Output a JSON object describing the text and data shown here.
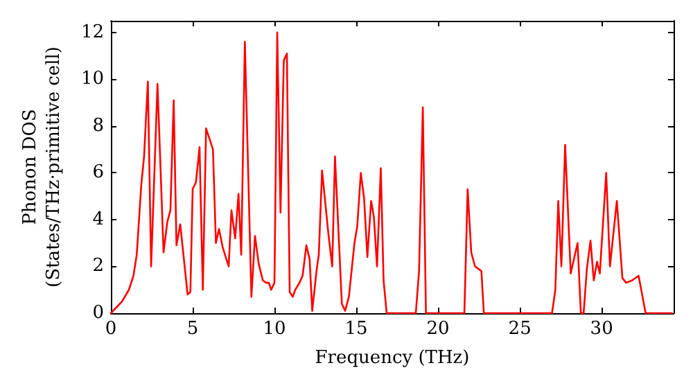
{
  "chart_data": {
    "type": "line",
    "xlabel": "Frequency (THz)",
    "ylabel": "Phonon DOS\n(States/THz·primitive cell)",
    "xlim": [
      0,
      34.4
    ],
    "ylim": [
      0,
      12.5
    ],
    "xticks": [
      0,
      5,
      10,
      15,
      20,
      25,
      30
    ],
    "yticks": [
      0,
      2,
      4,
      6,
      8,
      10,
      12
    ],
    "grid": false,
    "marker": "none",
    "line_style": "solid",
    "series": [
      {
        "color": "#ff0000",
        "x": [
          0,
          0.68,
          1.1,
          1.38,
          1.58,
          1.86,
          2.03,
          2.26,
          2.46,
          2.85,
          3.22,
          3.45,
          3.64,
          3.84,
          4.01,
          4.24,
          4.69,
          4.86,
          5.0,
          5.2,
          5.42,
          5.62,
          5.82,
          6.24,
          6.42,
          6.61,
          6.84,
          7.2,
          7.37,
          7.6,
          7.8,
          7.97,
          8.19,
          8.59,
          8.81,
          9.04,
          9.29,
          9.49,
          9.66,
          9.8,
          10.0,
          10.17,
          10.37,
          10.57,
          10.76,
          10.93,
          11.12,
          11.27,
          11.53,
          11.72,
          11.95,
          12.15,
          12.31,
          12.57,
          12.71,
          12.91,
          13.28,
          13.53,
          13.7,
          14.12,
          14.32,
          14.55,
          14.89,
          15.06,
          15.28,
          15.48,
          15.68,
          15.91,
          16.08,
          16.27,
          16.5,
          16.67,
          16.86,
          18.64,
          18.84,
          19.07,
          19.26,
          21.61,
          21.81,
          22.03,
          22.26,
          22.46,
          22.65,
          22.8,
          26.97,
          27.17,
          27.35,
          27.54,
          27.77,
          28.11,
          28.53,
          28.73,
          28.9,
          29.1,
          29.32,
          29.52,
          29.72,
          29.89,
          30.28,
          30.51,
          30.93,
          31.27,
          31.5,
          31.86,
          32.26,
          32.69,
          34.3
        ],
        "values": [
          0,
          0.5,
          1.0,
          1.6,
          2.5,
          5.5,
          6.7,
          9.9,
          2.0,
          9.8,
          2.6,
          3.9,
          4.4,
          9.1,
          2.9,
          3.8,
          0.8,
          0.9,
          5.3,
          5.6,
          7.1,
          1.0,
          7.9,
          7.0,
          3.0,
          3.6,
          2.8,
          2.0,
          4.4,
          3.2,
          5.1,
          2.5,
          11.6,
          0.7,
          3.3,
          2.1,
          1.4,
          1.3,
          1.3,
          1.0,
          1.3,
          12.0,
          4.3,
          10.8,
          11.1,
          0.9,
          0.7,
          1.0,
          1.3,
          1.6,
          2.9,
          2.3,
          0.1,
          1.8,
          2.5,
          6.1,
          3.5,
          2.0,
          6.7,
          0.4,
          0.1,
          0.7,
          3.0,
          3.7,
          6.0,
          4.9,
          2.4,
          4.8,
          4.1,
          2.0,
          6.2,
          1.4,
          0,
          0,
          1.8,
          8.8,
          0,
          0,
          5.3,
          2.6,
          2.0,
          1.9,
          1.8,
          0,
          0,
          1.0,
          4.8,
          2.0,
          7.2,
          1.7,
          3.0,
          0,
          0,
          1.9,
          3.1,
          1.4,
          2.2,
          1.7,
          6.0,
          2.0,
          4.8,
          1.5,
          1.3,
          1.4,
          1.6,
          0,
          0
        ]
      }
    ]
  }
}
